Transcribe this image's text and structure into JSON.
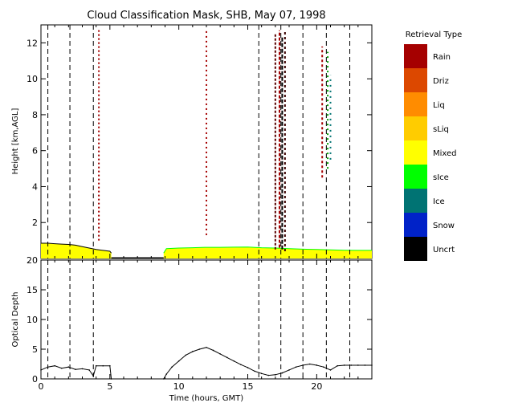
{
  "chart_data": [
    {
      "type": "heatmap",
      "title": "Cloud Classification Mask, SHB, May 07, 1998",
      "xlabel": "",
      "ylabel": "Height [km,AGL]",
      "xlim": [
        0,
        24
      ],
      "ylim": [
        0,
        13
      ],
      "x_ticks": [
        0,
        5,
        10,
        15,
        20
      ],
      "y_ticks": [
        2,
        4,
        6,
        8,
        10,
        12
      ],
      "vertical_dashed_lines_hours": [
        0.5,
        2.1,
        3.8,
        15.8,
        17.4,
        19.0,
        20.7,
        22.4
      ],
      "legend": {
        "title": "Retrieval Type",
        "placement": "right",
        "entries": [
          {
            "label": "Rain",
            "color": "#a50000"
          },
          {
            "label": "Driz",
            "color": "#dc4800"
          },
          {
            "label": "Liq",
            "color": "#ff8c00"
          },
          {
            "label": "sLiq",
            "color": "#ffcc00"
          },
          {
            "label": "Mixed",
            "color": "#ffff00"
          },
          {
            "label": "sIce",
            "color": "#00ff00"
          },
          {
            "label": "Ice",
            "color": "#007373"
          },
          {
            "label": "Snow",
            "color": "#0022c8"
          },
          {
            "label": "Uncrt",
            "color": "#000000"
          }
        ]
      },
      "mixed_layer_top_km": [
        [
          0.0,
          0.85
        ],
        [
          0.5,
          0.85
        ],
        [
          1.0,
          0.82
        ],
        [
          1.5,
          0.8
        ],
        [
          2.0,
          0.78
        ],
        [
          2.5,
          0.74
        ],
        [
          3.0,
          0.66
        ],
        [
          3.5,
          0.58
        ],
        [
          4.0,
          0.5
        ],
        [
          4.5,
          0.45
        ],
        [
          5.0,
          0.4
        ],
        [
          5.1,
          0.3
        ],
        [
          8.9,
          0.3
        ],
        [
          9.1,
          0.55
        ],
        [
          10.0,
          0.58
        ],
        [
          11.0,
          0.6
        ],
        [
          12.0,
          0.62
        ],
        [
          13.0,
          0.62
        ],
        [
          14.0,
          0.63
        ],
        [
          15.0,
          0.64
        ],
        [
          16.0,
          0.6
        ],
        [
          17.0,
          0.58
        ],
        [
          18.0,
          0.55
        ],
        [
          19.0,
          0.52
        ],
        [
          20.0,
          0.5
        ],
        [
          21.0,
          0.48
        ],
        [
          22.0,
          0.46
        ],
        [
          23.0,
          0.45
        ],
        [
          24.0,
          0.45
        ]
      ],
      "gap_hours": [
        5.1,
        8.9
      ],
      "vertical_streaks": [
        {
          "x": 4.2,
          "y0": 1.0,
          "y1": 12.8,
          "color": "#a50000",
          "dash": "2,3"
        },
        {
          "x": 12.0,
          "y0": 1.3,
          "y1": 12.7,
          "color": "#a50000",
          "dash": "2,4"
        },
        {
          "x": 17.0,
          "y0": 0.5,
          "y1": 12.5,
          "color": "#5a0000",
          "dash": "3,2"
        },
        {
          "x": 17.3,
          "y0": 0.6,
          "y1": 12.7,
          "color": "#a50000",
          "dash": "4,2"
        },
        {
          "x": 17.5,
          "y0": 0.5,
          "y1": 12.3,
          "color": "#000000",
          "dash": "5,2"
        },
        {
          "x": 17.7,
          "y0": 0.4,
          "y1": 12.6,
          "color": "#3a0000",
          "dash": "3,3"
        },
        {
          "x": 20.4,
          "y0": 4.5,
          "y1": 11.8,
          "color": "#a50000",
          "dash": "3,3"
        },
        {
          "x": 20.8,
          "y0": 5.0,
          "y1": 11.5,
          "color": "#00a000",
          "dash": "2,4"
        },
        {
          "x": 21.0,
          "y0": 5.5,
          "y1": 10.2,
          "color": "#007373",
          "dash": "2,5"
        }
      ]
    },
    {
      "type": "line",
      "title": "",
      "xlabel": "Time (hours, GMT)",
      "ylabel": "Optical Depth",
      "xlim": [
        0,
        24
      ],
      "ylim": [
        0,
        20
      ],
      "x_ticks": [
        0,
        5,
        10,
        15,
        20
      ],
      "y_ticks": [
        0,
        5,
        10,
        15,
        20
      ],
      "vertical_dashed_lines_hours": [
        0.5,
        2.1,
        3.8,
        15.8,
        17.4,
        19.0,
        20.7,
        22.4
      ],
      "series": [
        {
          "x": [
            0.0,
            0.5,
            1.0,
            1.5,
            2.0,
            2.5,
            3.0,
            3.5,
            3.8,
            4.0,
            4.5,
            5.0,
            5.1,
            8.9,
            9.1,
            9.5,
            10.0,
            10.5,
            11.0,
            11.5,
            12.0,
            12.5,
            13.0,
            13.5,
            14.0,
            14.5,
            15.0,
            15.5,
            16.0,
            16.5,
            17.0,
            17.5,
            18.0,
            18.5,
            19.0,
            19.5,
            20.0,
            20.5,
            21.0,
            21.5,
            22.0,
            22.5,
            23.0,
            23.5,
            24.0
          ],
          "values": [
            1.5,
            2.0,
            2.2,
            1.8,
            2.0,
            1.6,
            1.7,
            1.5,
            0.5,
            2.2,
            2.2,
            2.2,
            0.0,
            0.0,
            0.8,
            2.0,
            3.0,
            4.0,
            4.6,
            5.0,
            5.3,
            4.8,
            4.2,
            3.6,
            3.0,
            2.4,
            1.9,
            1.3,
            0.9,
            0.6,
            0.7,
            1.0,
            1.5,
            2.0,
            2.3,
            2.5,
            2.3,
            2.0,
            1.5,
            2.2,
            2.3,
            2.3,
            2.3,
            2.3,
            2.3
          ]
        }
      ]
    }
  ]
}
